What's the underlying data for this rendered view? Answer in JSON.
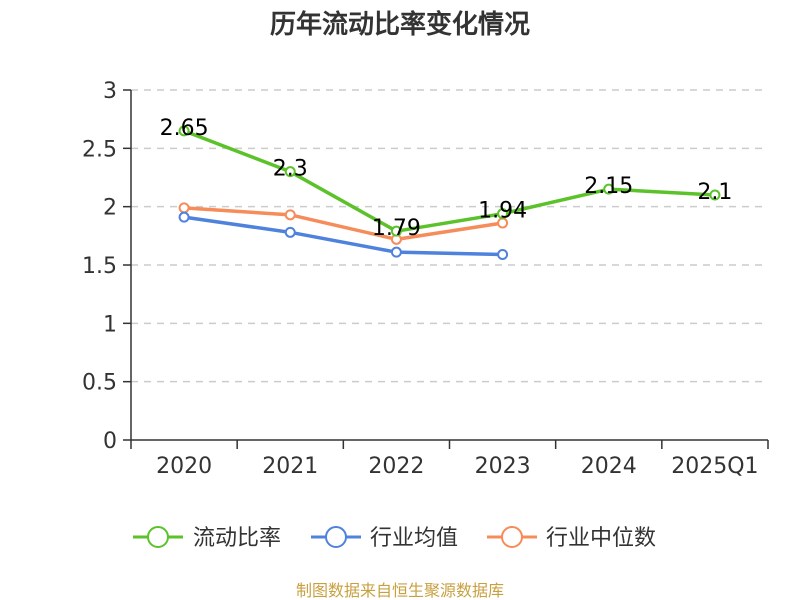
{
  "chart_data": {
    "type": "line",
    "title": "历年流动比率变化情况",
    "categories": [
      "2020",
      "2021",
      "2022",
      "2023",
      "2024",
      "2025Q1"
    ],
    "ylim": [
      0,
      3
    ],
    "yticks": [
      "0",
      "0.5",
      "1",
      "1.5",
      "2",
      "2.5",
      "3"
    ],
    "ytick_values": [
      0,
      0.5,
      1,
      1.5,
      2,
      2.5,
      3
    ],
    "grid": true,
    "legend_position": "bottom",
    "series": [
      {
        "name": "流动比率",
        "color": "#5cc22a",
        "values": [
          2.65,
          2.3,
          1.79,
          1.94,
          2.15,
          2.1
        ],
        "labels": [
          "2.65",
          "2.3",
          "1.79",
          "1.94",
          "2.15",
          "2.1"
        ]
      },
      {
        "name": "行业均值",
        "color": "#4f82dc",
        "values": [
          1.91,
          1.78,
          1.61,
          1.59,
          null,
          null
        ]
      },
      {
        "name": "行业中位数",
        "color": "#f58c5a",
        "values": [
          1.99,
          1.93,
          1.72,
          1.86,
          null,
          null
        ]
      }
    ]
  },
  "source": "制图数据来自恒生聚源数据库"
}
